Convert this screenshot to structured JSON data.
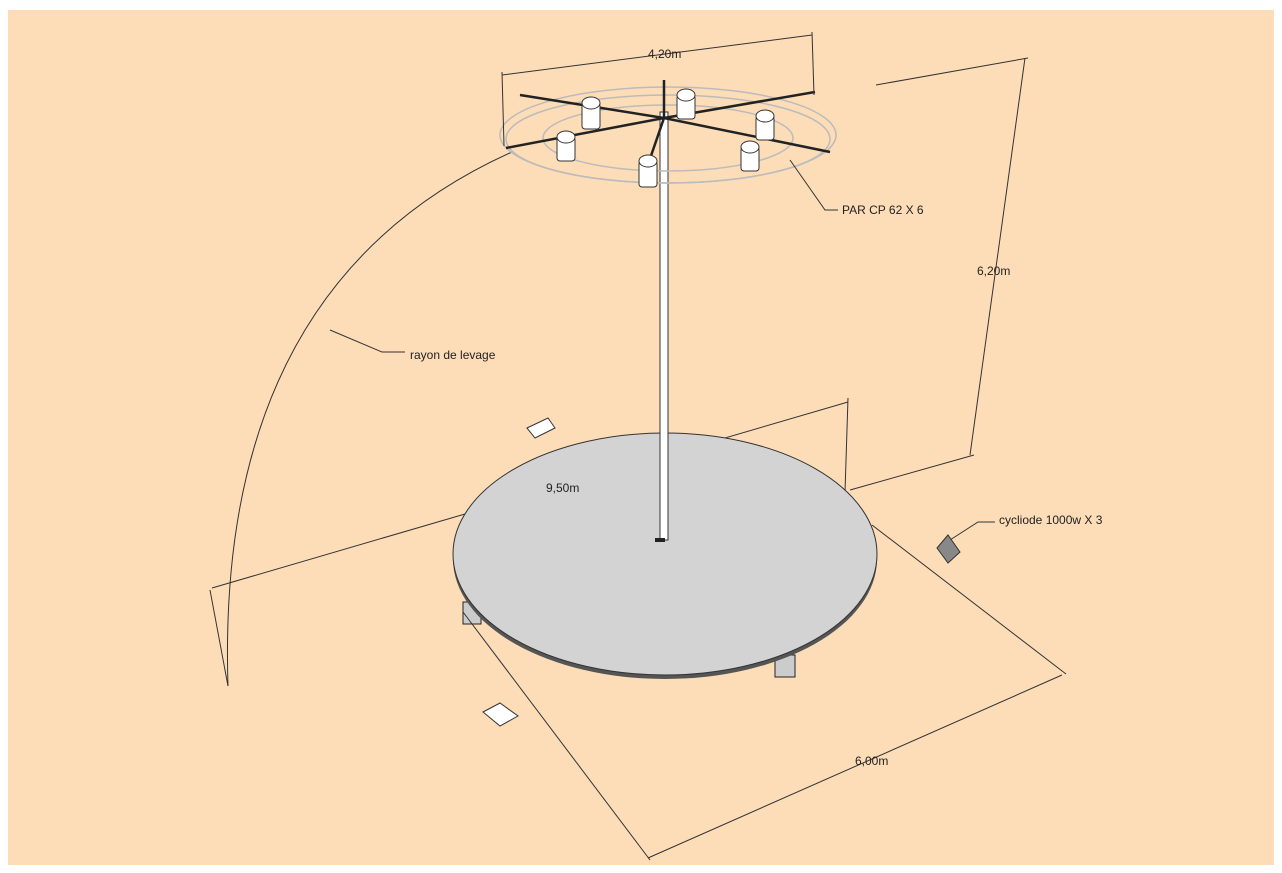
{
  "dimensions": [
    "4,20m",
    "6,20m",
    "9,50m",
    "6,00m"
  ],
  "labels": [
    "PAR CP 62 X 6",
    "rayon de levage",
    "cycliode 1000w X 3"
  ]
}
